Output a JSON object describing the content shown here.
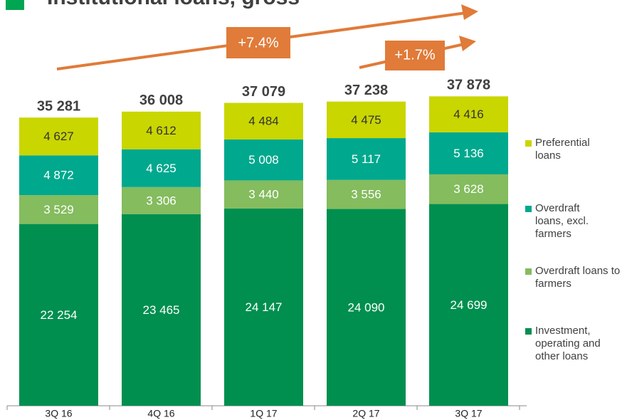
{
  "chart_data": {
    "type": "stacked_bar",
    "title": "Institutional loans, gross",
    "categories": [
      "3Q 16",
      "4Q 16",
      "1Q 17",
      "2Q 17",
      "3Q 17"
    ],
    "series": [
      {
        "name": "Investment, operating and other loans",
        "color": "#008f4f",
        "values": [
          22254,
          23465,
          24147,
          24090,
          24699
        ],
        "value_labels": [
          "22 254",
          "23 465",
          "24 147",
          "24 090",
          "24 699"
        ]
      },
      {
        "name": "Overdraft loans to farmers",
        "color": "#84bc5e",
        "values": [
          3529,
          3306,
          3440,
          3556,
          3628
        ],
        "value_labels": [
          "3 529",
          "3 306",
          "3 440",
          "3 556",
          "3 628"
        ]
      },
      {
        "name": "Overdraft loans, excl. farmers",
        "color": "#00a88e",
        "values": [
          4872,
          4625,
          5008,
          5117,
          5136
        ],
        "value_labels": [
          "4 872",
          "4 625",
          "5 008",
          "5 117",
          "5 136"
        ]
      },
      {
        "name": "Preferential loans",
        "color": "#c9d600",
        "values": [
          4627,
          4612,
          4484,
          4475,
          4416
        ],
        "value_labels": [
          "4 627",
          "4 612",
          "4 484",
          "4 475",
          "4 416"
        ]
      }
    ],
    "totals": [
      35281,
      36008,
      37079,
      37238,
      37878
    ],
    "total_labels": [
      "35 281",
      "36 008",
      "37 079",
      "37 238",
      "37 878"
    ],
    "annotations": [
      "+7.4%",
      "+1.7%"
    ],
    "ylim": [
      0,
      40000
    ]
  }
}
